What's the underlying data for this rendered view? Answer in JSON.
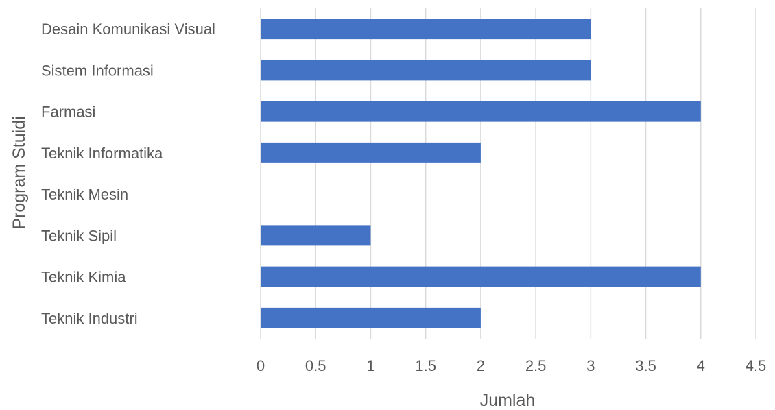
{
  "chart_data": {
    "type": "bar",
    "orientation": "horizontal",
    "categories": [
      "Desain Komunikasi Visual",
      "Sistem Informasi",
      "Farmasi",
      "Teknik Informatika",
      "Teknik Mesin",
      "Teknik Sipil",
      "Teknik Kimia",
      "Teknik Industri"
    ],
    "values": [
      3,
      3,
      4,
      2,
      0,
      1,
      4,
      2
    ],
    "xlabel": "Jumlah",
    "ylabel": "Program Stuidi",
    "xlim": [
      0,
      4.5
    ],
    "xticks": [
      "0",
      "0.5",
      "1",
      "1.5",
      "2",
      "2.5",
      "3",
      "3.5",
      "4",
      "4.5"
    ],
    "grid": "vertical",
    "legend": "none",
    "colors": {
      "bar": "#4472c4",
      "grid": "#d9d9d9",
      "text": "#595959"
    }
  }
}
